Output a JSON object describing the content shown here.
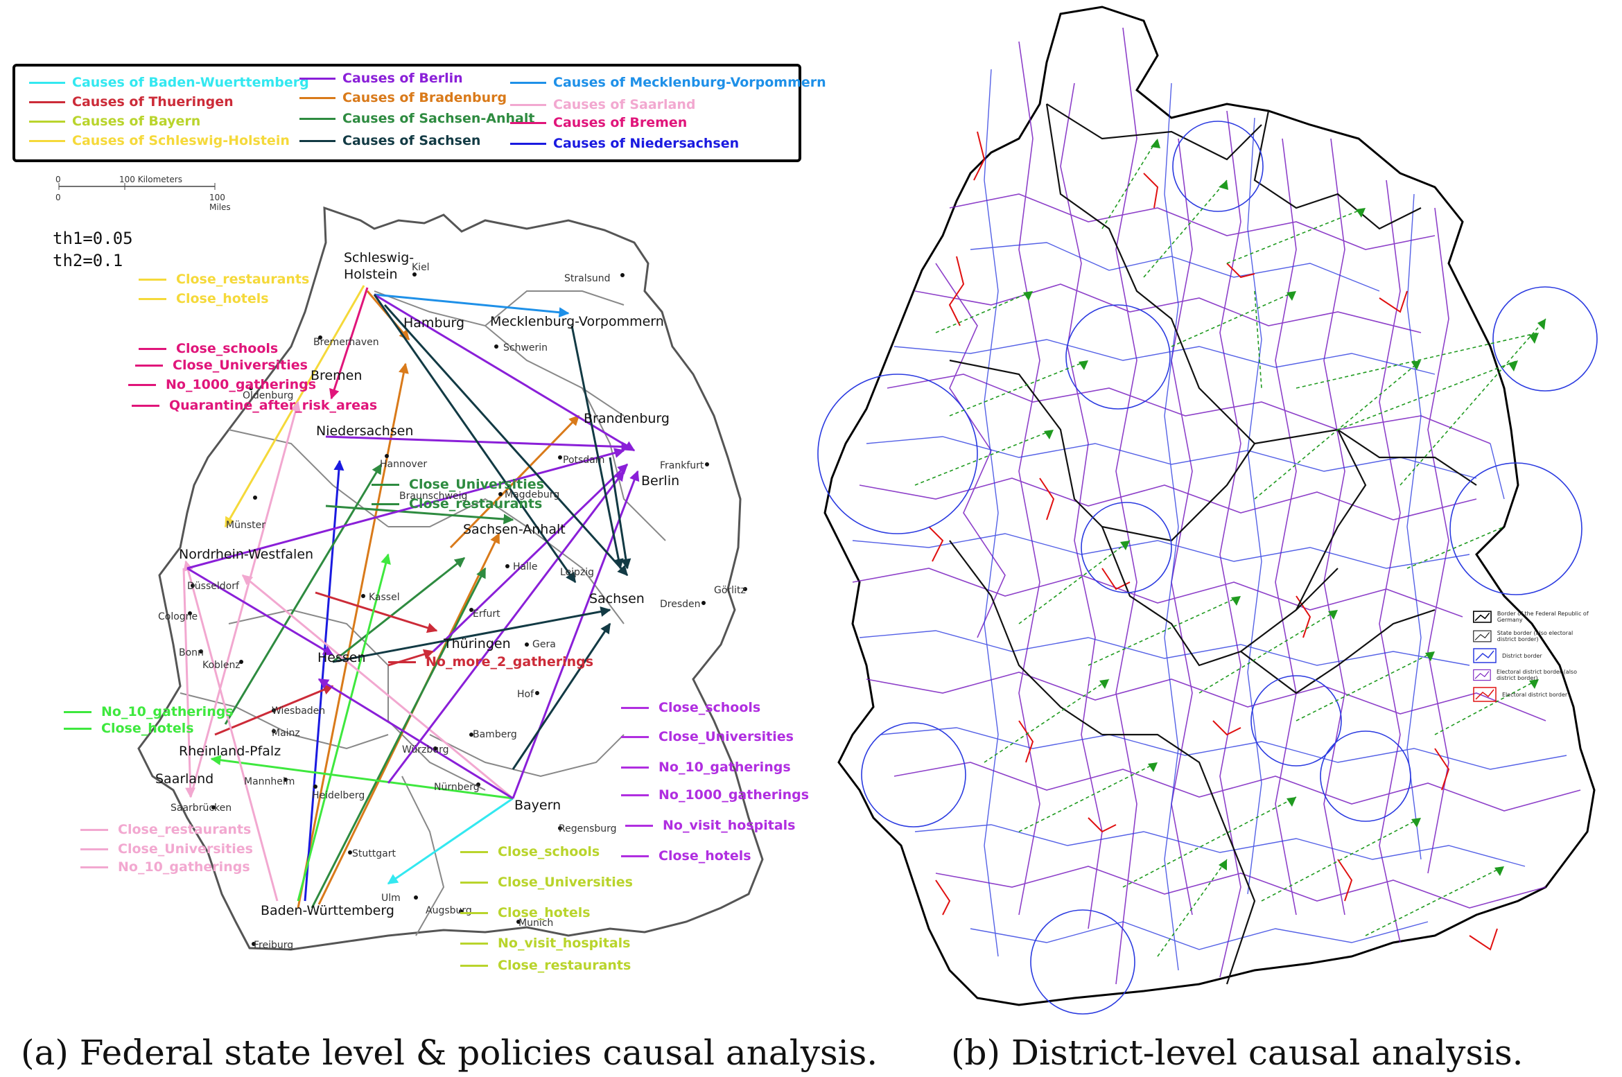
{
  "panel_a": {
    "caption": "(a) Federal state level & policies causal analysis.",
    "legend": [
      {
        "label": "Causes of Baden-Wuerttemberg",
        "color": "#33e8f0"
      },
      {
        "label": "Causes of Thueringen",
        "color": "#cc2b38"
      },
      {
        "label": "Causes of Bayern",
        "color": "#b9d42c"
      },
      {
        "label": "Causes of Schleswig-Holstein",
        "color": "#f5d93a"
      },
      {
        "label": "Causes of Berlin",
        "color": "#8a1fd8"
      },
      {
        "label": "Causes of Bradenburg",
        "color": "#d97a1a"
      },
      {
        "label": "Causes of Sachsen-Anhalt",
        "color": "#2e8b40"
      },
      {
        "label": "Causes of Sachsen",
        "color": "#123a44"
      },
      {
        "label": "Causes of Mecklenburg-Vorpommern",
        "color": "#1e90e8"
      },
      {
        "label": "Causes of Saarland",
        "color": "#f2a8d0"
      },
      {
        "label": "Causes of Bremen",
        "color": "#e0157a"
      },
      {
        "label": "Causes of Niedersachsen",
        "color": "#1a1ae0"
      }
    ],
    "scale": {
      "km_zero": "0",
      "km_label": "100 Kilometers",
      "mi_zero": "0",
      "mi_label": "100 Miles"
    },
    "thresholds": {
      "th1": "th1=0.05",
      "th2": "th2=0.1"
    },
    "states": {
      "schleswig1": "Schleswig-",
      "schleswig2": "Holstein",
      "mv": "Mecklenburg-Vorpommern",
      "hamburg": "Hamburg",
      "bremen": "Bremen",
      "niedersachsen": "Niedersachsen",
      "brandenburg": "Brandenburg",
      "berlin": "Berlin",
      "sachsen_anhalt": "Sachsen-Anhalt",
      "nrw": "Nordrhein-Westfalen",
      "sachsen": "Sachsen",
      "thueringen": "Thüringen",
      "hessen": "Hessen",
      "rlp": "Rheinland-Pfalz",
      "saarland": "Saarland",
      "bayern": "Bayern",
      "bw": "Baden-Württemberg"
    },
    "cities": {
      "kiel": "Kiel",
      "stralsund": "Stralsund",
      "bremerhaven": "Bremerhaven",
      "schwerin": "Schwerin",
      "oldenburg": "Oldenburg",
      "hannover": "Hannover",
      "braunschweig": "Braunschweig",
      "magdeburg": "Magdeburg",
      "potsdam": "Potsdam",
      "frankfurt_oder": "Frankfurt",
      "muenster": "Münster",
      "duesseldorf": "Düsseldorf",
      "cologne": "Cologne",
      "bonn": "Bonn",
      "koblenz": "Koblenz",
      "kassel": "Kassel",
      "erfurt": "Erfurt",
      "halle": "Halle",
      "leipzig": "Leipzig",
      "dresden": "Dresden",
      "goerlitz": "Görlitz",
      "gera": "Gera",
      "hof": "Hof",
      "wiesbaden": "Wiesbaden",
      "mainz": "Mainz",
      "mannheim": "Mannheim",
      "heidelberg": "Heidelberg",
      "wuerzburg": "Würzburg",
      "bamberg": "Bamberg",
      "nuernberg": "Nürnberg",
      "regensburg": "Regensburg",
      "saarbruecken": "Saarbrücken",
      "stuttgart": "Stuttgart",
      "ulm": "Ulm",
      "augsburg": "Augsburg",
      "munich": "Munich",
      "freiburg": "Freiburg"
    },
    "policies_sh": {
      "color": "#f5d93a",
      "items": [
        "Close_restaurants",
        "Close_hotels"
      ]
    },
    "policies_bremen": {
      "color": "#e0157a",
      "items": [
        "Close_schools",
        "Close_Universities",
        "No_1000_gatherings",
        "Quarantine_after_risk_areas"
      ]
    },
    "policies_sa": {
      "color": "#2e8b40",
      "items": [
        "Close_Universities",
        "Close_restaurants"
      ]
    },
    "policies_th": {
      "color": "#cc2b38",
      "items": [
        "No_more_2_gatherings"
      ]
    },
    "policies_rlp": {
      "color": "#3ee83e",
      "items": [
        "No_10_gatherings",
        "Close_hotels"
      ]
    },
    "policies_berlin": {
      "color": "#b02ee0",
      "items": [
        "Close_schools",
        "Close_Universities",
        "No_10_gatherings",
        "No_1000_gatherings",
        "No_visit_hospitals",
        "Close_hotels"
      ]
    },
    "policies_saarland": {
      "color": "#f2a8d0",
      "items": [
        "Close_restaurants",
        "Close_Universities",
        "No_10_gatherings"
      ]
    },
    "policies_bayern": {
      "color": "#b9d42c",
      "items": [
        "Close_schools",
        "Close_Universities",
        "Close_hotels",
        "No_visit_hospitals",
        "Close_restaurants"
      ]
    }
  },
  "panel_b": {
    "caption": "(b) District-level causal analysis.",
    "legend": [
      {
        "label": "Border of the Federal Republic of Germany",
        "color": "#000000"
      },
      {
        "label": "State border (also electoral district border)",
        "color": "#222222"
      },
      {
        "label": "District border",
        "color": "#2a3ae0"
      },
      {
        "label": "Electoral district border (also district border)",
        "color": "#7a1fc0"
      },
      {
        "label": "Electoral district border",
        "color": "#e01010"
      }
    ]
  }
}
